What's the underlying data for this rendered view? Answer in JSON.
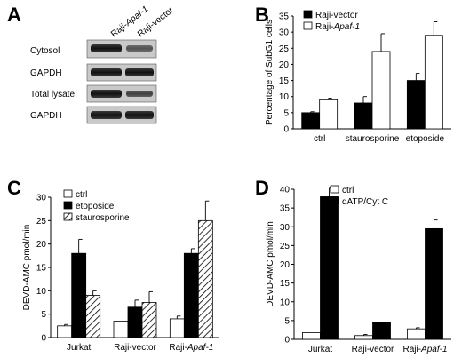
{
  "panels": {
    "A": {
      "letter": "A",
      "lanes": [
        "Raji-Apaf-1",
        "Raji-vector"
      ],
      "rows": [
        "Cytosol",
        "GAPDH",
        "Total lysate",
        "GAPDH"
      ]
    },
    "B": {
      "letter": "B"
    },
    "C": {
      "letter": "C"
    },
    "D": {
      "letter": "D"
    }
  },
  "chart_data": [
    {
      "id": "B",
      "type": "bar",
      "categories": [
        "ctrl",
        "staurosporine",
        "etoposide"
      ],
      "series": [
        {
          "name": "Raji-vector",
          "fill": "#000000",
          "hatch": false,
          "values": [
            5,
            8,
            15
          ],
          "errors": [
            0.3,
            2,
            2.2
          ]
        },
        {
          "name": "Raji-Apaf-1",
          "fill": "#ffffff",
          "hatch": false,
          "values": [
            9,
            24,
            29
          ],
          "errors": [
            0.5,
            5.5,
            4.2
          ]
        }
      ],
      "title": "",
      "xlabel": "",
      "ylabel": "Percentage of SubG1 cells",
      "ylim": [
        0,
        35
      ],
      "yticks": [
        0,
        5,
        10,
        15,
        20,
        25,
        30,
        35
      ],
      "legend": "top-left",
      "grid": false
    },
    {
      "id": "C",
      "type": "bar",
      "categories": [
        "Jurkat",
        "Raji-vector",
        "Raji-Apaf-1"
      ],
      "series": [
        {
          "name": "ctrl",
          "fill": "#ffffff",
          "hatch": false,
          "values": [
            2.5,
            3.5,
            4
          ],
          "errors": [
            0.3,
            0,
            0.6
          ]
        },
        {
          "name": "etoposide",
          "fill": "#000000",
          "hatch": false,
          "values": [
            18,
            6.5,
            18
          ],
          "errors": [
            3,
            1.5,
            1
          ]
        },
        {
          "name": "staurosporine",
          "fill": "#ffffff",
          "hatch": true,
          "values": [
            9,
            7.5,
            25
          ],
          "errors": [
            1,
            2.3,
            4.2
          ]
        }
      ],
      "title": "",
      "xlabel": "",
      "ylabel": "DEVD-AMC pmol/min",
      "ylim": [
        0,
        30
      ],
      "yticks": [
        0,
        5,
        10,
        15,
        20,
        25,
        30
      ],
      "legend": "top-left",
      "grid": false
    },
    {
      "id": "D",
      "type": "bar",
      "categories": [
        "Jurkat",
        "Raji-vector",
        "Raji-Apaf-1"
      ],
      "series": [
        {
          "name": "ctrl",
          "fill": "#ffffff",
          "hatch": false,
          "values": [
            1.8,
            1,
            2.8
          ],
          "errors": [
            0,
            0.3,
            0.3
          ]
        },
        {
          "name": "dATP/Cyt C",
          "fill": "#000000",
          "hatch": false,
          "values": [
            38,
            4.5,
            29.5
          ],
          "errors": [
            2.3,
            0,
            2.3
          ]
        }
      ],
      "title": "",
      "xlabel": "",
      "ylabel": "DEVD-AMC pmol/min",
      "ylim": [
        0,
        40
      ],
      "yticks": [
        0,
        5,
        10,
        15,
        20,
        25,
        30,
        35,
        40
      ],
      "legend": "top-left",
      "grid": false
    }
  ]
}
